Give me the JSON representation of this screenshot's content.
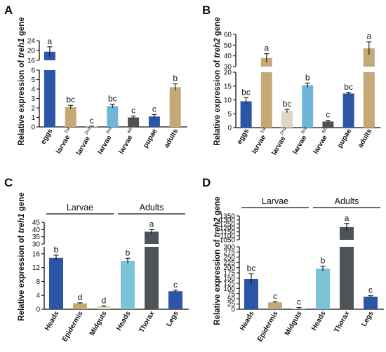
{
  "colors": {
    "blue": "#2b55a7",
    "tan": "#c4a876",
    "beige": "#dcd8c4",
    "lightblue": "#6fb5d9",
    "gray": "#4e5256",
    "teal": "#7cc2d8",
    "darkgray": "#4d5359",
    "axis": "#111111"
  },
  "chart_data": [
    {
      "panel": "A",
      "type": "bar",
      "ylabel_prefix": "Relative expression of ",
      "ylabel_gene": "treh1",
      "ylabel_suffix": " gene",
      "axis_break": true,
      "upper_ylim": [
        16,
        24
      ],
      "upper_ticks": [
        16,
        20,
        24
      ],
      "lower_ylim": [
        0,
        6
      ],
      "lower_ticks": [
        0,
        1,
        2,
        3,
        4,
        5,
        6
      ],
      "categories": [
        {
          "label": "eggs",
          "sup": ""
        },
        {
          "label": "larvae",
          "sup": "1st"
        },
        {
          "label": "larvae",
          "sup": "2nd"
        },
        {
          "label": "larvae",
          "sup": "3rd"
        },
        {
          "label": "larvae",
          "sup": "4th"
        },
        {
          "label": "pupae",
          "sup": ""
        },
        {
          "label": "adults",
          "sup": ""
        }
      ],
      "values": [
        19.5,
        2.1,
        0.05,
        2.2,
        1.0,
        1.1,
        4.2
      ],
      "errors": [
        2.0,
        0.18,
        0.02,
        0.2,
        0.15,
        0.2,
        0.35
      ],
      "letters": [
        "a",
        "bc",
        "c",
        "bc",
        "c",
        "c",
        "b"
      ],
      "colors": [
        "#2b55a7",
        "#c4a876",
        "#dcd8c4",
        "#6fb5d9",
        "#4e5256",
        "#2b55a7",
        "#c4a876"
      ]
    },
    {
      "panel": "B",
      "type": "bar",
      "ylabel_prefix": "Relative expression of ",
      "ylabel_gene": "treh2",
      "ylabel_suffix": " gene",
      "axis_break": true,
      "upper_ylim": [
        30,
        60
      ],
      "upper_ticks": [
        30,
        40,
        50,
        60
      ],
      "lower_ylim": [
        0,
        20
      ],
      "lower_ticks": [
        0,
        5,
        10,
        15,
        20
      ],
      "categories": [
        {
          "label": "eggs",
          "sup": ""
        },
        {
          "label": "larvae",
          "sup": "1st"
        },
        {
          "label": "larvae",
          "sup": "2nd"
        },
        {
          "label": "larvae",
          "sup": "3rd"
        },
        {
          "label": "larvae",
          "sup": "4th"
        },
        {
          "label": "pupae",
          "sup": ""
        },
        {
          "label": "adults",
          "sup": ""
        }
      ],
      "values": [
        9.5,
        38,
        6.0,
        15.3,
        2.2,
        12.3,
        47
      ],
      "errors": [
        1.3,
        4.0,
        0.6,
        0.8,
        0.4,
        0.4,
        6.0
      ],
      "letters": [
        "bc",
        "a",
        "bc",
        "b",
        "c",
        "bc",
        "a"
      ],
      "colors": [
        "#2b55a7",
        "#c4a876",
        "#dcd8c4",
        "#6fb5d9",
        "#4e5256",
        "#2b55a7",
        "#c4a876"
      ]
    },
    {
      "panel": "C",
      "type": "bar",
      "ylabel_prefix": "Relative expression of ",
      "ylabel_gene": "treh1",
      "ylabel_suffix": " gene",
      "axis_break": true,
      "upper_ylim": [
        30,
        45
      ],
      "upper_ticks": [
        30,
        35,
        40,
        45
      ],
      "lower_ylim": [
        0,
        18
      ],
      "lower_ticks": [
        0,
        4,
        8,
        12,
        16
      ],
      "groups": [
        {
          "label": "Larvae",
          "first": 0,
          "last": 2
        },
        {
          "label": "Adults",
          "first": 3,
          "last": 5
        }
      ],
      "categories": [
        {
          "label": "Heads",
          "sup": ""
        },
        {
          "label": "Epidermis",
          "sup": ""
        },
        {
          "label": "Midguts",
          "sup": ""
        },
        {
          "label": "Heads",
          "sup": ""
        },
        {
          "label": "Thorax",
          "sup": ""
        },
        {
          "label": "Legs",
          "sup": ""
        }
      ],
      "values": [
        14.8,
        1.7,
        0.8,
        14.0,
        38.5,
        5.2
      ],
      "errors": [
        0.8,
        0.15,
        0.15,
        0.7,
        1.5,
        0.3
      ],
      "letters": [
        "b",
        "d",
        "d",
        "b",
        "a",
        "c"
      ],
      "colors": [
        "#2b55a7",
        "#c4a876",
        "#dcd8c4",
        "#7cc2d8",
        "#4d5359",
        "#2b55a7"
      ]
    },
    {
      "panel": "D",
      "type": "bar",
      "ylabel_prefix": "Relative expression of ",
      "ylabel_gene": "treh2",
      "ylabel_suffix": " gene",
      "axis_break": true,
      "upper_ylim": [
        1050,
        1350
      ],
      "upper_ticks": [
        1050,
        1100,
        1150,
        1200,
        1250,
        1300,
        1350
      ],
      "lower_ylim": [
        0,
        300
      ],
      "lower_ticks": [
        0,
        25,
        50,
        75,
        100,
        125,
        150,
        175,
        200,
        225,
        250,
        275,
        300
      ],
      "groups": [
        {
          "label": "Larvae",
          "first": 0,
          "last": 2
        },
        {
          "label": "Adults",
          "first": 3,
          "last": 5
        }
      ],
      "categories": [
        {
          "label": "Heads",
          "sup": ""
        },
        {
          "label": "Epidermis",
          "sup": ""
        },
        {
          "label": "Midguts",
          "sup": ""
        },
        {
          "label": "Heads",
          "sup": ""
        },
        {
          "label": "Thorax",
          "sup": ""
        },
        {
          "label": "Legs",
          "sup": ""
        }
      ],
      "values": [
        145,
        33,
        5,
        195,
        1210,
        60
      ],
      "errors": [
        25,
        3,
        3,
        12,
        45,
        5
      ],
      "letters": [
        "bc",
        "c",
        "c",
        "b",
        "a",
        "c"
      ],
      "colors": [
        "#2b55a7",
        "#c4a876",
        "#dcd8c4",
        "#7cc2d8",
        "#4d5359",
        "#2b55a7"
      ]
    }
  ]
}
